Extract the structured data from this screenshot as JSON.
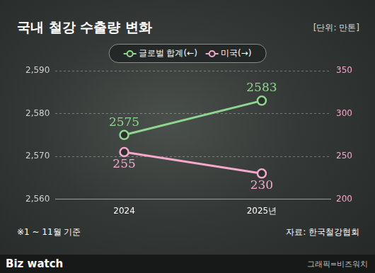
{
  "chart_data": {
    "type": "line",
    "title": "국내 철강 수출량 변화",
    "subtitle": "[단위: 만톤]",
    "note": "※1 ~ 11월 기준",
    "source": "자료: 한국철강협회",
    "credit": "그래픽=비즈워치",
    "brand": "Biz watch",
    "categories": [
      "2024",
      "2025년"
    ],
    "series": [
      {
        "name": "글로벌 합계(←)",
        "color": "#8fd68f",
        "values": [
          2575,
          2583
        ]
      },
      {
        "name": "미국(→)",
        "color": "#f4a9cb",
        "values": [
          255,
          230
        ],
        "axis": "y2"
      }
    ],
    "ylim": [
      2560,
      2590
    ],
    "yticks": [
      2560,
      2570,
      2580,
      2590
    ],
    "y2lim": [
      200,
      350
    ],
    "y2ticks": [
      200,
      250,
      300,
      350
    ],
    "grid": true,
    "legend": "top",
    "data_labels": true,
    "marker": "circle"
  }
}
